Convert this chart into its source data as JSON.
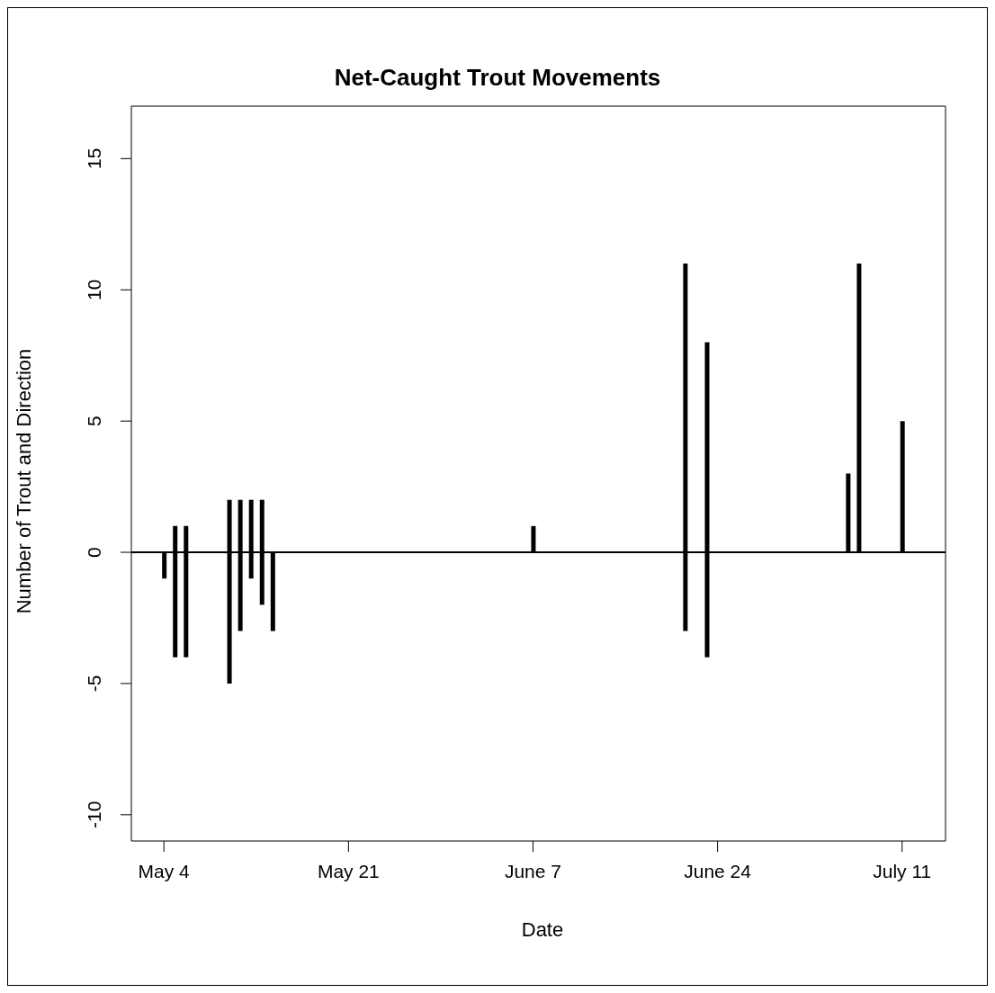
{
  "chart_data": {
    "type": "bar",
    "title": "Net-Caught Trout Movements",
    "xlabel": "Date",
    "ylabel": "Number of Trout and Direction",
    "x": [
      "--05-04",
      "--05-05",
      "--05-06",
      "--05-10",
      "--05-11",
      "--05-12",
      "--05-13",
      "--05-14",
      "--06-07",
      "--06-21",
      "--06-23",
      "--07-06",
      "--07-07",
      "--07-11"
    ],
    "base": [
      -1,
      -4,
      -4,
      -5,
      -3,
      -1,
      -2,
      -3,
      0,
      -3,
      -4,
      0,
      0,
      0
    ],
    "values": [
      1,
      5,
      5,
      7,
      5,
      3,
      4,
      3,
      1,
      14,
      12,
      3,
      11,
      5
    ],
    "color": "#000000",
    "xlim": [
      "--05-01",
      "--07-15"
    ],
    "xticks": [
      {
        "value": "--05-04",
        "label": "May 4"
      },
      {
        "value": "--05-21",
        "label": "May 21"
      },
      {
        "value": "--06-07",
        "label": "June 7"
      },
      {
        "value": "--06-24",
        "label": "June 24"
      },
      {
        "value": "--07-11",
        "label": "July 11"
      }
    ],
    "ylim": [
      -11,
      17
    ],
    "yticks": [
      -10,
      -5,
      0,
      5,
      10,
      15
    ],
    "ref_lines": [
      {
        "axis": "y",
        "value": 0,
        "color": "#000000"
      }
    ]
  }
}
